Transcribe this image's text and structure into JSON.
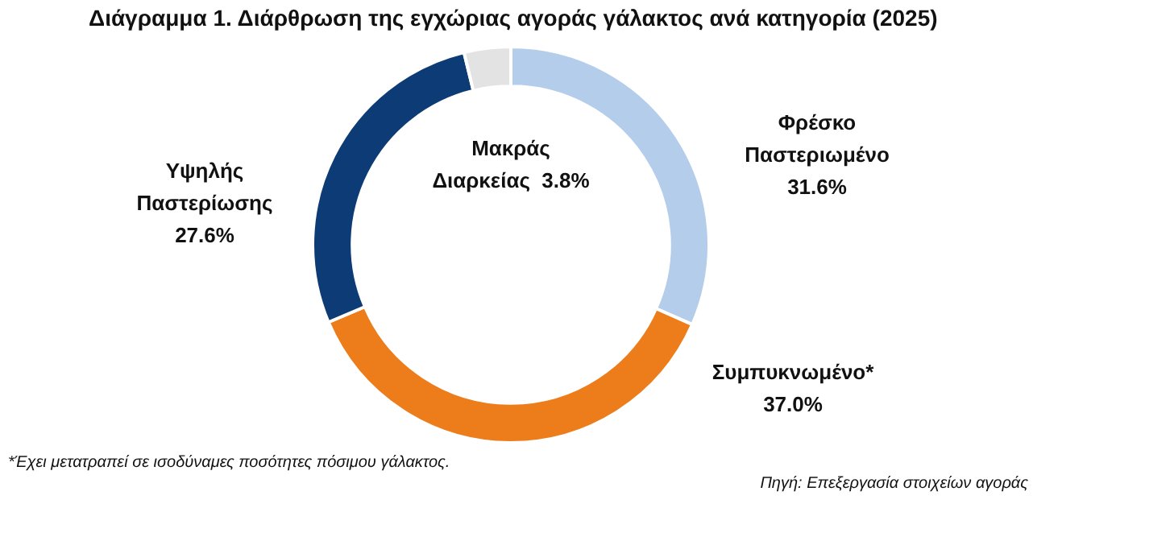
{
  "chart_data": {
    "type": "donut",
    "title": "Διάγραμμα 1. Διάρθρωση της εγχώριας αγοράς γάλακτος ανά κατηγορία (2025)",
    "categories": [
      "Φρέσκο Παστεριωμένο",
      "Συμπυκνωμένο*",
      "Υψηλής Παστερίωσης",
      "Μακράς Διαρκείας"
    ],
    "values": [
      31.6,
      37.0,
      27.6,
      3.8
    ],
    "value_labels": [
      "31.6%",
      "37.0%",
      "27.6%",
      "3.8%"
    ],
    "colors": [
      "#b4cdea",
      "#ed7d1b",
      "#0d3b75",
      "#e3e3e3"
    ],
    "annotations": [
      "*Έχει μετατραπεί σε ισοδύναμες ποσότητες πόσιμου γάλακτος.",
      "Πηγή: Επεξεργασία στοιχείων αγοράς"
    ]
  }
}
